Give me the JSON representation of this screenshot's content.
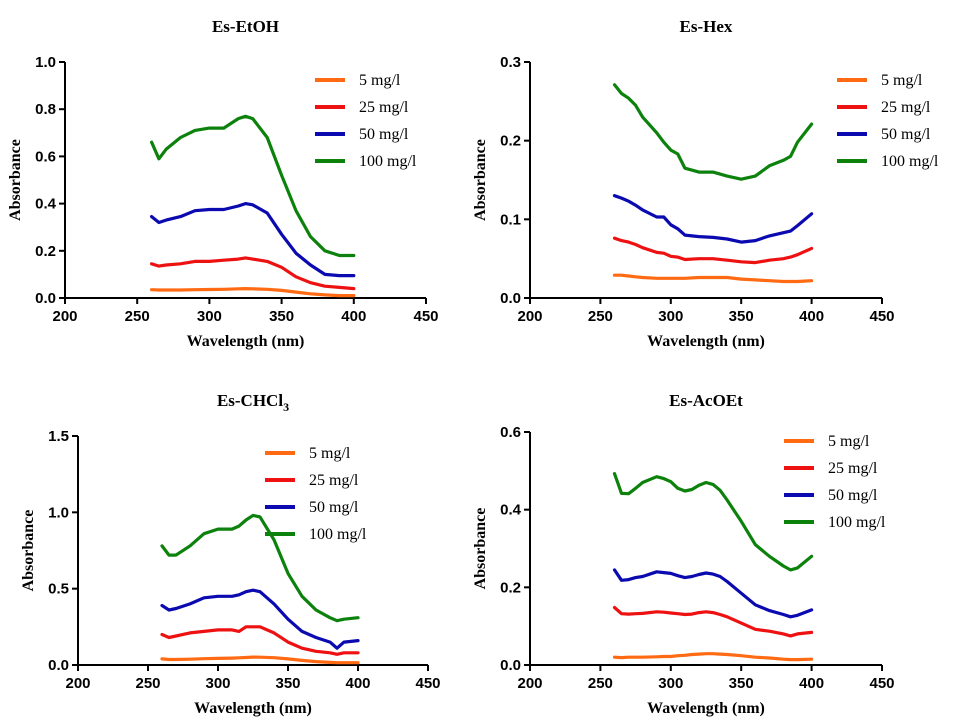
{
  "figure": {
    "colors": {
      "5 mg/l": "#ff6a13",
      "25 mg/l": "#ee1111",
      "50 mg/l": "#0a0ab0",
      "100 mg/l": "#0c820c"
    }
  },
  "chart_data": [
    {
      "type": "line",
      "title": "Es-EtOH",
      "xlabel": "Wavelength (nm)",
      "ylabel": "Absorbance",
      "xlim": [
        200,
        450
      ],
      "ylim": [
        0,
        1.0
      ],
      "xticks": [
        "200",
        "250",
        "300",
        "350",
        "400",
        "450"
      ],
      "yticks": [
        "0.0",
        "0.2",
        "0.4",
        "0.6",
        "0.8",
        "1.0"
      ],
      "legend": "top-right",
      "x": [
        260,
        265,
        270,
        280,
        290,
        300,
        310,
        320,
        325,
        330,
        340,
        350,
        360,
        370,
        380,
        390,
        400
      ],
      "series": [
        {
          "name": "5 mg/l",
          "values": [
            0.035,
            0.034,
            0.034,
            0.034,
            0.035,
            0.036,
            0.037,
            0.039,
            0.04,
            0.039,
            0.037,
            0.032,
            0.025,
            0.018,
            0.013,
            0.01,
            0.01
          ]
        },
        {
          "name": "25 mg/l",
          "values": [
            0.145,
            0.135,
            0.14,
            0.145,
            0.155,
            0.155,
            0.16,
            0.165,
            0.17,
            0.165,
            0.155,
            0.13,
            0.09,
            0.065,
            0.05,
            0.045,
            0.04
          ]
        },
        {
          "name": "50 mg/l",
          "values": [
            0.345,
            0.32,
            0.33,
            0.345,
            0.37,
            0.375,
            0.375,
            0.39,
            0.4,
            0.395,
            0.36,
            0.27,
            0.19,
            0.14,
            0.1,
            0.095,
            0.095
          ]
        },
        {
          "name": "100 mg/l",
          "values": [
            0.66,
            0.59,
            0.63,
            0.68,
            0.71,
            0.72,
            0.72,
            0.76,
            0.77,
            0.76,
            0.68,
            0.52,
            0.37,
            0.26,
            0.2,
            0.18,
            0.18
          ]
        }
      ]
    },
    {
      "type": "line",
      "title": "Es-Hex",
      "xlabel": "Wavelength (nm)",
      "ylabel": "Absorbance",
      "xlim": [
        200,
        450
      ],
      "ylim": [
        0,
        0.3
      ],
      "xticks": [
        "200",
        "250",
        "300",
        "350",
        "400",
        "450"
      ],
      "yticks": [
        "0.0",
        "0.1",
        "0.2",
        "0.3"
      ],
      "legend": "top-right",
      "x": [
        260,
        265,
        270,
        275,
        280,
        290,
        295,
        300,
        305,
        310,
        320,
        330,
        340,
        350,
        360,
        370,
        380,
        385,
        390,
        400
      ],
      "series": [
        {
          "name": "5 mg/l",
          "values": [
            0.029,
            0.029,
            0.028,
            0.027,
            0.026,
            0.025,
            0.025,
            0.025,
            0.025,
            0.025,
            0.026,
            0.026,
            0.026,
            0.024,
            0.023,
            0.022,
            0.021,
            0.021,
            0.021,
            0.022
          ]
        },
        {
          "name": "25 mg/l",
          "values": [
            0.076,
            0.073,
            0.071,
            0.068,
            0.064,
            0.058,
            0.057,
            0.053,
            0.052,
            0.049,
            0.05,
            0.05,
            0.048,
            0.046,
            0.045,
            0.048,
            0.05,
            0.052,
            0.055,
            0.063
          ]
        },
        {
          "name": "50 mg/l",
          "values": [
            0.13,
            0.127,
            0.123,
            0.118,
            0.112,
            0.103,
            0.103,
            0.093,
            0.088,
            0.08,
            0.078,
            0.077,
            0.075,
            0.071,
            0.073,
            0.079,
            0.083,
            0.085,
            0.092,
            0.107
          ]
        },
        {
          "name": "100 mg/l",
          "values": [
            0.271,
            0.26,
            0.254,
            0.245,
            0.23,
            0.21,
            0.198,
            0.188,
            0.183,
            0.165,
            0.16,
            0.16,
            0.155,
            0.151,
            0.155,
            0.168,
            0.175,
            0.18,
            0.198,
            0.221
          ]
        }
      ]
    },
    {
      "type": "line",
      "title": "Es-CHCl3",
      "xlabel": "Wavelength (nm)",
      "ylabel": "Absorbance",
      "xlim": [
        200,
        450
      ],
      "ylim": [
        0,
        1.5
      ],
      "xticks": [
        "200",
        "250",
        "300",
        "350",
        "400",
        "450"
      ],
      "yticks": [
        "0.0",
        "0.5",
        "1.0",
        "1.5"
      ],
      "legend": "top-right",
      "x": [
        260,
        265,
        270,
        280,
        290,
        300,
        310,
        315,
        320,
        325,
        330,
        340,
        350,
        360,
        370,
        380,
        385,
        390,
        400
      ],
      "series": [
        {
          "name": "5 mg/l",
          "values": [
            0.04,
            0.036,
            0.036,
            0.038,
            0.041,
            0.043,
            0.045,
            0.047,
            0.049,
            0.052,
            0.051,
            0.048,
            0.04,
            0.03,
            0.022,
            0.017,
            0.015,
            0.015,
            0.015
          ]
        },
        {
          "name": "25 mg/l",
          "values": [
            0.2,
            0.18,
            0.19,
            0.21,
            0.22,
            0.23,
            0.23,
            0.22,
            0.25,
            0.25,
            0.25,
            0.21,
            0.15,
            0.11,
            0.09,
            0.08,
            0.07,
            0.08,
            0.08
          ]
        },
        {
          "name": "50 mg/l",
          "values": [
            0.39,
            0.36,
            0.37,
            0.4,
            0.44,
            0.45,
            0.45,
            0.46,
            0.48,
            0.49,
            0.48,
            0.4,
            0.3,
            0.22,
            0.18,
            0.15,
            0.11,
            0.15,
            0.16
          ]
        },
        {
          "name": "100 mg/l",
          "values": [
            0.78,
            0.72,
            0.72,
            0.78,
            0.86,
            0.89,
            0.89,
            0.91,
            0.95,
            0.98,
            0.97,
            0.82,
            0.6,
            0.45,
            0.36,
            0.31,
            0.29,
            0.3,
            0.31
          ]
        }
      ]
    },
    {
      "type": "line",
      "title": "Es-AcOEt",
      "xlabel": "Wavelength (nm)",
      "ylabel": "Absorbance",
      "xlim": [
        200,
        450
      ],
      "ylim": [
        0,
        0.6
      ],
      "xticks": [
        "200",
        "250",
        "300",
        "350",
        "400",
        "450"
      ],
      "yticks": [
        "0.0",
        "0.2",
        "0.4",
        "0.6"
      ],
      "legend": "top-right",
      "x": [
        260,
        265,
        270,
        275,
        280,
        290,
        295,
        300,
        305,
        310,
        315,
        320,
        325,
        330,
        335,
        340,
        350,
        360,
        370,
        380,
        385,
        390,
        400
      ],
      "series": [
        {
          "name": "5 mg/l",
          "values": [
            0.02,
            0.019,
            0.02,
            0.02,
            0.02,
            0.021,
            0.022,
            0.022,
            0.024,
            0.025,
            0.027,
            0.028,
            0.029,
            0.029,
            0.028,
            0.027,
            0.024,
            0.02,
            0.018,
            0.015,
            0.014,
            0.014,
            0.015
          ]
        },
        {
          "name": "25 mg/l",
          "values": [
            0.148,
            0.132,
            0.131,
            0.132,
            0.133,
            0.137,
            0.136,
            0.134,
            0.132,
            0.13,
            0.131,
            0.135,
            0.137,
            0.135,
            0.13,
            0.124,
            0.108,
            0.092,
            0.087,
            0.08,
            0.075,
            0.08,
            0.084
          ]
        },
        {
          "name": "50 mg/l",
          "values": [
            0.245,
            0.218,
            0.22,
            0.225,
            0.228,
            0.24,
            0.238,
            0.236,
            0.23,
            0.225,
            0.228,
            0.233,
            0.237,
            0.234,
            0.228,
            0.215,
            0.185,
            0.155,
            0.14,
            0.13,
            0.124,
            0.128,
            0.142
          ]
        },
        {
          "name": "100 mg/l",
          "values": [
            0.493,
            0.442,
            0.441,
            0.455,
            0.47,
            0.485,
            0.48,
            0.472,
            0.455,
            0.448,
            0.452,
            0.463,
            0.47,
            0.465,
            0.45,
            0.425,
            0.37,
            0.31,
            0.28,
            0.255,
            0.245,
            0.25,
            0.28
          ]
        }
      ]
    }
  ]
}
